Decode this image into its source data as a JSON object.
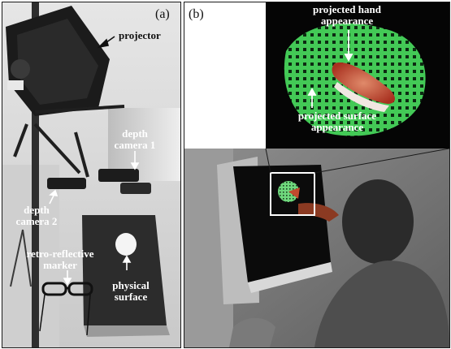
{
  "panel_a": {
    "letter": "(a)",
    "labels": {
      "projector": "projector",
      "depth_camera_1": [
        "depth",
        "camera 1"
      ],
      "depth_camera_2": [
        "depth",
        "camera 2"
      ],
      "retro_reflective_marker": [
        "retro-reflective",
        "marker"
      ],
      "physical_surface": [
        "physical",
        "surface"
      ]
    }
  },
  "panel_b": {
    "letter": "(b)",
    "labels": {
      "projected_hand_appearance": [
        "projected hand",
        "appearance"
      ],
      "projected_surface_appearance": [
        "projected surface",
        "appearance"
      ]
    }
  },
  "colors": {
    "border": "#1a1a1a",
    "projection_green": "#38c24a",
    "hand_red": "#c8452f",
    "label_dark": "#111111",
    "label_light": "#ffffff"
  }
}
